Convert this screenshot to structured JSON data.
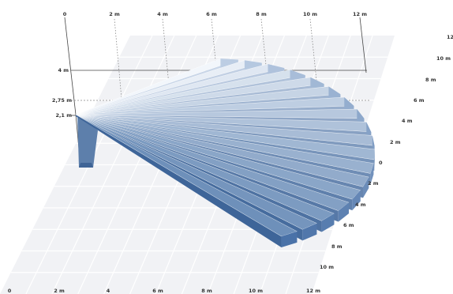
{
  "figure": {
    "top_axis_labels": [
      "0",
      "2 m",
      "4 m",
      "6 m",
      "8 m",
      "10 m",
      "12 m"
    ],
    "height_labels": [
      "4 m",
      "2,75 m",
      "2,1 m"
    ],
    "right_depth_labels": [
      "12",
      "10 m",
      "8 m",
      "6 m",
      "4 m",
      "2 m",
      "0",
      "2 m",
      "4 m",
      "6 m",
      "8 m",
      "10 m",
      "12 m"
    ],
    "bottom_axis_labels": [
      "0",
      "2 m",
      "4",
      "6 m",
      "8 m",
      "10 m"
    ],
    "beam_count": 18,
    "colors": {
      "floor": "#f1f2f5",
      "floor_grid": "#ffffff",
      "beam_top_light": "#f2f6fb",
      "beam_top_dark": "#6e90ba",
      "beam_end": "#4a72a8",
      "guide_line": "#444444"
    }
  }
}
